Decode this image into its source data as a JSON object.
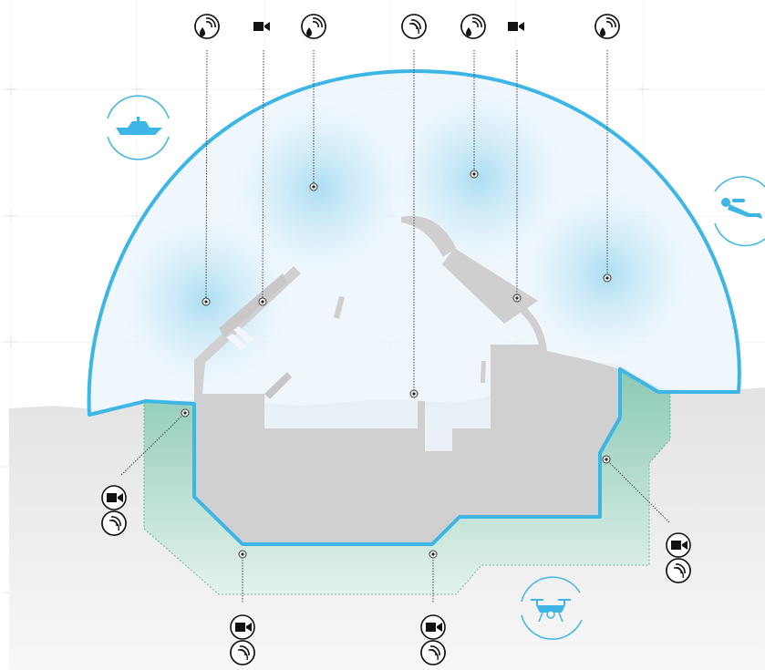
{
  "colors": {
    "dome_stroke": "#3db6e6",
    "dome_fill": "#e9f4fb",
    "sensor_glow": "#a9dcf2",
    "structure": "#cfcfcf",
    "interior": "#f3f7fb",
    "ground": "#e6e6e6",
    "underground": "#8fccb8",
    "icon_dark": "#111111",
    "leader_line": "#555555",
    "grid": "#d8d8d8"
  },
  "icons": {
    "top_row": [
      "water-sensor-icon",
      "camera-icon",
      "water-sensor-icon",
      "sensor-icon",
      "water-sensor-icon",
      "camera-icon",
      "water-sensor-icon"
    ],
    "left_badges": [
      "camera-icon",
      "sensor-icon"
    ],
    "right_badges": [
      "camera-icon",
      "sensor-icon"
    ],
    "bottom_left_badges": [
      "camera-icon",
      "sensor-icon"
    ],
    "bottom_mid_badges": [
      "camera-icon",
      "sensor-icon"
    ],
    "vehicles": [
      "boat-icon",
      "diver-icon",
      "drone-icon"
    ]
  }
}
